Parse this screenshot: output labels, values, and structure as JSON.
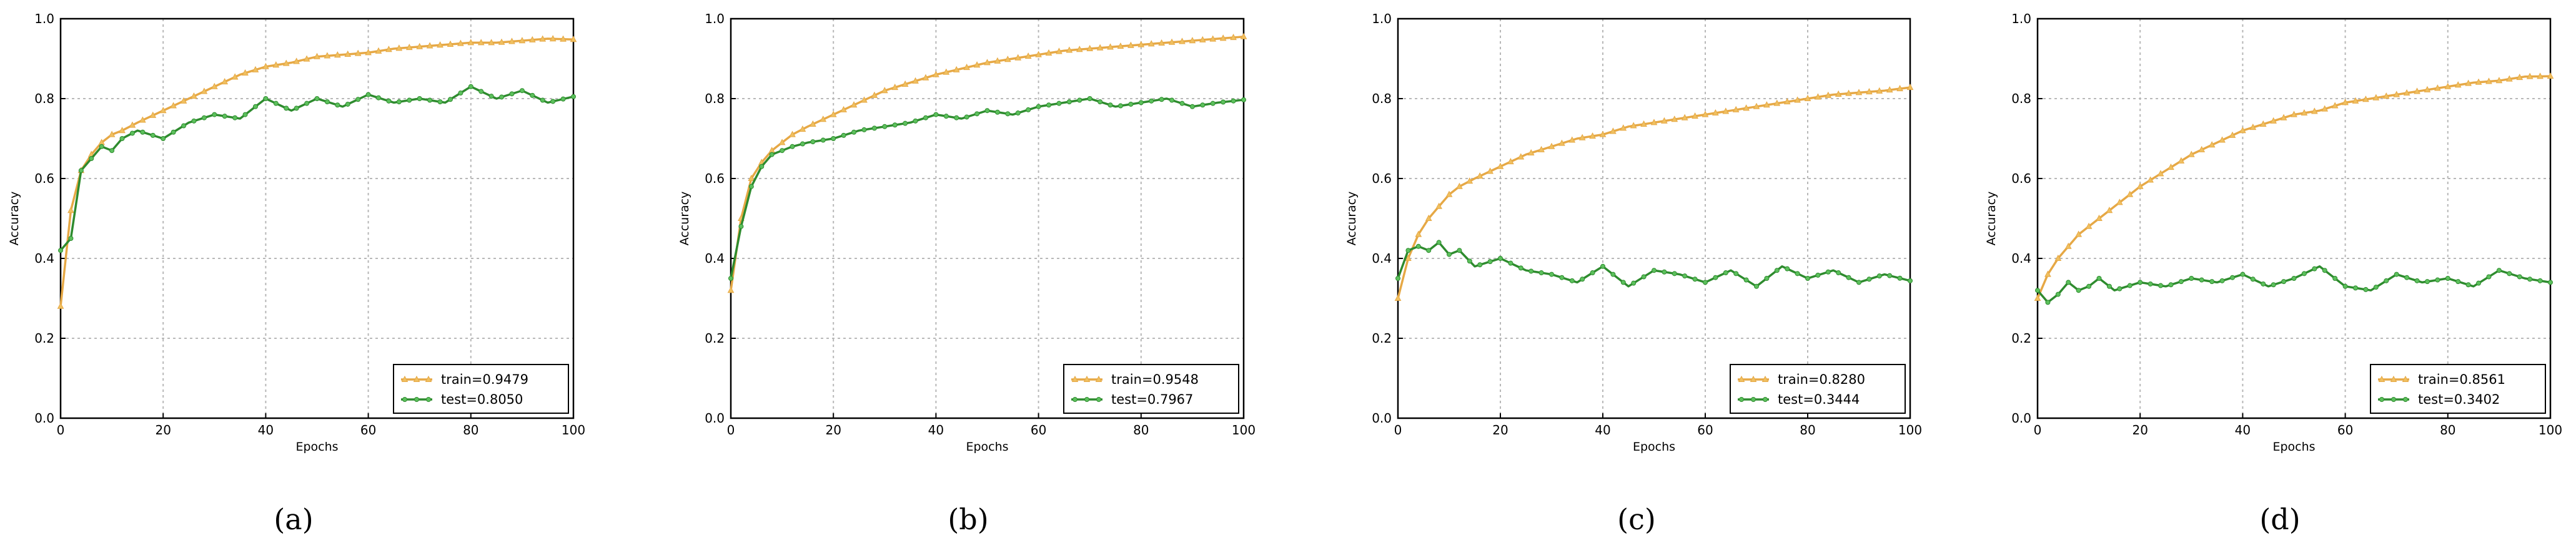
{
  "colors": {
    "train": "#e6a845",
    "test": "#2e8b2e",
    "train_marker": "#f0c060",
    "test_marker": "#5cc05c",
    "grid": "#b8b8b8",
    "axis": "#000000"
  },
  "panels": [
    {
      "label": "a",
      "caption": "(a)",
      "xlabel": "Epochs",
      "ylabel": "Accuracy",
      "legend": {
        "train": "train=0.9479",
        "test": "test=0.8050"
      }
    },
    {
      "label": "b",
      "caption": "(b)",
      "xlabel": "Epochs",
      "ylabel": "Accuracy",
      "legend": {
        "train": "train=0.9548",
        "test": "test=0.7967"
      }
    },
    {
      "label": "c",
      "caption": "(c)",
      "xlabel": "Epochs",
      "ylabel": "Accuracy",
      "legend": {
        "train": "train=0.8280",
        "test": "test=0.3444"
      }
    },
    {
      "label": "d",
      "caption": "(d)",
      "xlabel": "Epochs",
      "ylabel": "Accuracy",
      "legend": {
        "train": "train=0.8561",
        "test": "test=0.3402"
      }
    }
  ],
  "chart_data": [
    {
      "type": "line",
      "xlabel": "Epochs",
      "ylabel": "Accuracy",
      "xlim": [
        0,
        100
      ],
      "ylim": [
        0.0,
        1.0
      ],
      "xticks": [
        0,
        20,
        40,
        60,
        80,
        100
      ],
      "yticks": [
        0.0,
        0.2,
        0.4,
        0.6,
        0.8,
        1.0
      ],
      "grid": true,
      "legend_position": "lower-right",
      "x": [
        0,
        2,
        4,
        6,
        8,
        10,
        12,
        15,
        20,
        25,
        30,
        35,
        40,
        45,
        50,
        55,
        60,
        65,
        70,
        75,
        80,
        85,
        90,
        95,
        100
      ],
      "series": [
        {
          "name": "train=0.9479",
          "values": [
            0.28,
            0.52,
            0.62,
            0.66,
            0.69,
            0.71,
            0.72,
            0.74,
            0.77,
            0.8,
            0.83,
            0.86,
            0.88,
            0.89,
            0.905,
            0.91,
            0.915,
            0.925,
            0.93,
            0.935,
            0.94,
            0.94,
            0.945,
            0.95,
            0.948
          ]
        },
        {
          "name": "test=0.8050",
          "values": [
            0.42,
            0.45,
            0.62,
            0.65,
            0.68,
            0.67,
            0.7,
            0.72,
            0.7,
            0.74,
            0.76,
            0.75,
            0.8,
            0.77,
            0.8,
            0.78,
            0.81,
            0.79,
            0.8,
            0.79,
            0.83,
            0.8,
            0.82,
            0.79,
            0.805
          ]
        }
      ]
    },
    {
      "type": "line",
      "xlabel": "Epochs",
      "ylabel": "Accuracy",
      "xlim": [
        0,
        100
      ],
      "ylim": [
        0.0,
        1.0
      ],
      "xticks": [
        0,
        20,
        40,
        60,
        80,
        100
      ],
      "yticks": [
        0.0,
        0.2,
        0.4,
        0.6,
        0.8,
        1.0
      ],
      "grid": true,
      "legend_position": "lower-right",
      "x": [
        0,
        2,
        4,
        6,
        8,
        10,
        12,
        15,
        20,
        25,
        30,
        35,
        40,
        45,
        50,
        55,
        60,
        65,
        70,
        75,
        80,
        85,
        90,
        95,
        100
      ],
      "series": [
        {
          "name": "train=0.9548",
          "values": [
            0.32,
            0.5,
            0.6,
            0.64,
            0.67,
            0.69,
            0.71,
            0.73,
            0.76,
            0.79,
            0.82,
            0.84,
            0.86,
            0.875,
            0.89,
            0.9,
            0.91,
            0.92,
            0.925,
            0.93,
            0.935,
            0.94,
            0.945,
            0.95,
            0.955
          ]
        },
        {
          "name": "test=0.7967",
          "values": [
            0.35,
            0.48,
            0.58,
            0.63,
            0.66,
            0.67,
            0.68,
            0.69,
            0.7,
            0.72,
            0.73,
            0.74,
            0.76,
            0.75,
            0.77,
            0.76,
            0.78,
            0.79,
            0.8,
            0.78,
            0.79,
            0.8,
            0.78,
            0.79,
            0.797
          ]
        }
      ]
    },
    {
      "type": "line",
      "xlabel": "Epochs",
      "ylabel": "Accuracy",
      "xlim": [
        0,
        100
      ],
      "ylim": [
        0.0,
        1.0
      ],
      "xticks": [
        0,
        20,
        40,
        60,
        80,
        100
      ],
      "yticks": [
        0.0,
        0.2,
        0.4,
        0.6,
        0.8,
        1.0
      ],
      "grid": true,
      "legend_position": "lower-right",
      "x": [
        0,
        2,
        4,
        6,
        8,
        10,
        12,
        15,
        20,
        25,
        30,
        35,
        40,
        45,
        50,
        55,
        60,
        65,
        70,
        75,
        80,
        85,
        90,
        95,
        100
      ],
      "series": [
        {
          "name": "train=0.8280",
          "values": [
            0.3,
            0.4,
            0.46,
            0.5,
            0.53,
            0.56,
            0.58,
            0.6,
            0.63,
            0.66,
            0.68,
            0.7,
            0.71,
            0.73,
            0.74,
            0.75,
            0.76,
            0.77,
            0.78,
            0.79,
            0.8,
            0.81,
            0.815,
            0.82,
            0.828
          ]
        },
        {
          "name": "test=0.3444",
          "values": [
            0.35,
            0.42,
            0.43,
            0.42,
            0.44,
            0.41,
            0.42,
            0.38,
            0.4,
            0.37,
            0.36,
            0.34,
            0.38,
            0.33,
            0.37,
            0.36,
            0.34,
            0.37,
            0.33,
            0.38,
            0.35,
            0.37,
            0.34,
            0.36,
            0.344
          ]
        }
      ]
    },
    {
      "type": "line",
      "xlabel": "Epochs",
      "ylabel": "Accuracy",
      "xlim": [
        0,
        100
      ],
      "ylim": [
        0.0,
        1.0
      ],
      "xticks": [
        0,
        20,
        40,
        60,
        80,
        100
      ],
      "yticks": [
        0.0,
        0.2,
        0.4,
        0.6,
        0.8,
        1.0
      ],
      "grid": true,
      "legend_position": "lower-right",
      "x": [
        0,
        2,
        4,
        6,
        8,
        10,
        12,
        15,
        20,
        25,
        30,
        35,
        40,
        45,
        50,
        55,
        60,
        65,
        70,
        75,
        80,
        85,
        90,
        95,
        100
      ],
      "series": [
        {
          "name": "train=0.8561",
          "values": [
            0.3,
            0.36,
            0.4,
            0.43,
            0.46,
            0.48,
            0.5,
            0.53,
            0.58,
            0.62,
            0.66,
            0.69,
            0.72,
            0.74,
            0.76,
            0.77,
            0.79,
            0.8,
            0.81,
            0.82,
            0.83,
            0.84,
            0.845,
            0.855,
            0.856
          ]
        },
        {
          "name": "test=0.3402",
          "values": [
            0.32,
            0.29,
            0.31,
            0.34,
            0.32,
            0.33,
            0.35,
            0.32,
            0.34,
            0.33,
            0.35,
            0.34,
            0.36,
            0.33,
            0.35,
            0.38,
            0.33,
            0.32,
            0.36,
            0.34,
            0.35,
            0.33,
            0.37,
            0.35,
            0.34
          ]
        }
      ]
    }
  ]
}
